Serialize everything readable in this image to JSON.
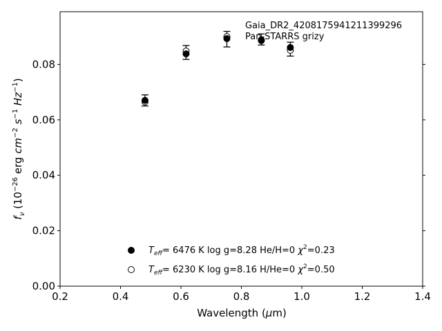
{
  "chart_data": {
    "type": "scatter",
    "annotations": [
      "Gaia_DR2_4208175941211399296",
      "Pan-STARRS grizy"
    ],
    "xlabel": "Wavelength (μm)",
    "ylabel": "f_ν (10^−26 erg cm^−2 s^−1 Hz^−1)",
    "xlim": [
      0.2,
      1.4
    ],
    "ylim": [
      0.0,
      0.099
    ],
    "xticks": [
      0.2,
      0.4,
      0.6,
      0.8,
      1.0,
      1.2,
      1.4
    ],
    "xtick_labels": [
      "0.2",
      "0.4",
      "0.6",
      "0.8",
      "1.0",
      "1.2",
      "1.4"
    ],
    "yticks": [
      0.0,
      0.02,
      0.04,
      0.06,
      0.08
    ],
    "ytick_labels": [
      "0.00",
      "0.02",
      "0.04",
      "0.06",
      "0.08"
    ],
    "grid": false,
    "legend_position": "lower-center",
    "series": [
      {
        "name": "T_eff= 6476 K log g=8.28 He/H=0 χ²=0.23",
        "legend": {
          "teff": "6476 K",
          "logg": "log g=8.28",
          "comp": "He/H=0",
          "chi": "=0.23"
        },
        "marker": "filled-circle",
        "x": [
          0.481,
          0.617,
          0.752,
          0.866,
          0.962
        ],
        "y": [
          0.067,
          0.0838,
          0.0893,
          0.0886,
          0.0861
        ]
      },
      {
        "name": "T_eff= 6230 K log g=8.16 H/He=0 χ²=0.50",
        "legend": {
          "teff": "6230 K",
          "logg": "log g=8.16",
          "comp": "H/He=0",
          "chi": "=0.50"
        },
        "marker": "open-circle",
        "x": [
          0.481,
          0.617,
          0.752,
          0.866,
          0.962
        ],
        "y": [
          0.0665,
          0.0848,
          0.09,
          0.0888,
          0.0851
        ]
      }
    ],
    "observations": {
      "x": [
        0.481,
        0.617,
        0.752,
        0.866,
        0.962
      ],
      "y": [
        0.067,
        0.0843,
        0.0891,
        0.089,
        0.0855
      ],
      "yerr": [
        0.002,
        0.0025,
        0.0028,
        0.002,
        0.0025
      ]
    }
  }
}
